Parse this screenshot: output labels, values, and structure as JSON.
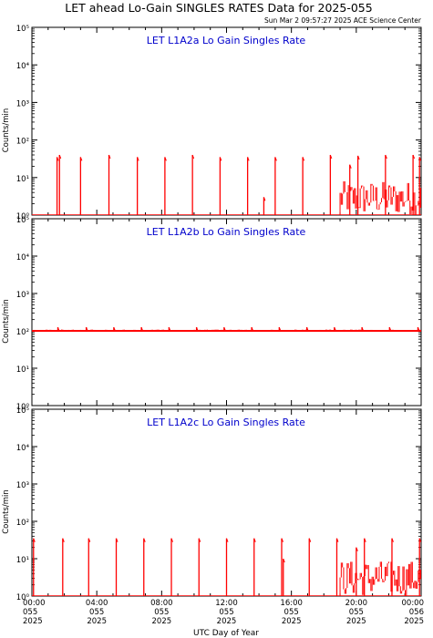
{
  "figure": {
    "title": "LET ahead Lo-Gain SINGLES RATES Data for 2025-055",
    "timestamp": "Sun Mar  2 09:57:27 2025 ACE Science Center",
    "xlabel": "UTC Day of Year",
    "colors": {
      "data": "#ff0000",
      "panel_title": "#0000cc",
      "axes": "#000000",
      "background": "#ffffff"
    }
  },
  "chart_data": [
    {
      "type": "line",
      "title": "LET L1A2a Lo Gain Singles Rate",
      "ylabel": "Counts/min",
      "yscale": "log",
      "ylim": [
        1,
        100000
      ],
      "ytick_labels": [
        "10⁰",
        "10¹",
        "10²",
        "10³",
        "10⁴",
        "10⁵"
      ],
      "xlim": [
        0,
        24
      ],
      "x_unit": "hours UTC, day 055",
      "baseline": 1,
      "spikes": [
        {
          "x": 1.55,
          "y": 35
        },
        {
          "x": 1.7,
          "y": 40
        },
        {
          "x": 3.0,
          "y": 35
        },
        {
          "x": 4.75,
          "y": 40
        },
        {
          "x": 6.5,
          "y": 35
        },
        {
          "x": 8.2,
          "y": 35
        },
        {
          "x": 9.9,
          "y": 40
        },
        {
          "x": 11.6,
          "y": 35
        },
        {
          "x": 13.3,
          "y": 35
        },
        {
          "x": 14.3,
          "y": 3
        },
        {
          "x": 15.0,
          "y": 35
        },
        {
          "x": 16.7,
          "y": 35
        },
        {
          "x": 18.4,
          "y": 40
        },
        {
          "x": 19.6,
          "y": 22
        },
        {
          "x": 20.1,
          "y": 38
        },
        {
          "x": 21.8,
          "y": 40
        },
        {
          "x": 23.5,
          "y": 40
        },
        {
          "x": 23.9,
          "y": 35
        }
      ],
      "noise": {
        "x_start": 19.0,
        "x_end": 24.0,
        "y_low": 1,
        "y_high": 8
      }
    },
    {
      "type": "line",
      "title": "LET L1A2b Lo Gain Singles Rate",
      "ylabel": "Counts/min",
      "yscale": "log",
      "ylim": [
        1,
        100000
      ],
      "ytick_labels": [
        "10⁰",
        "10¹",
        "10²",
        "10³",
        "10⁴",
        "10⁵"
      ],
      "xlim": [
        0,
        24
      ],
      "x_unit": "hours UTC, day 055",
      "baseline": 100,
      "spikes": [
        {
          "x": 1.6,
          "y": 125
        },
        {
          "x": 3.35,
          "y": 125
        },
        {
          "x": 5.05,
          "y": 125
        },
        {
          "x": 6.75,
          "y": 125
        },
        {
          "x": 8.45,
          "y": 125
        },
        {
          "x": 10.15,
          "y": 125
        },
        {
          "x": 11.85,
          "y": 125
        },
        {
          "x": 13.55,
          "y": 125
        },
        {
          "x": 15.25,
          "y": 125
        },
        {
          "x": 16.95,
          "y": 125
        },
        {
          "x": 18.65,
          "y": 125
        },
        {
          "x": 20.35,
          "y": 125
        },
        {
          "x": 22.05,
          "y": 125
        },
        {
          "x": 23.8,
          "y": 125
        }
      ],
      "noise": {
        "x_start": 0,
        "x_end": 24,
        "y_low": 95,
        "y_high": 108
      }
    },
    {
      "type": "line",
      "title": "LET L1A2c Lo Gain Singles Rate",
      "ylabel": "Counts/min",
      "yscale": "log",
      "ylim": [
        1,
        100000
      ],
      "ytick_labels": [
        "10⁰",
        "10¹",
        "10²",
        "10³",
        "10⁴",
        "10⁵"
      ],
      "xlim": [
        0,
        24
      ],
      "x_unit": "hours UTC, day 055",
      "baseline": 1,
      "spikes": [
        {
          "x": 0.1,
          "y": 35
        },
        {
          "x": 1.9,
          "y": 35
        },
        {
          "x": 3.5,
          "y": 35
        },
        {
          "x": 5.2,
          "y": 35
        },
        {
          "x": 6.9,
          "y": 35
        },
        {
          "x": 8.6,
          "y": 35
        },
        {
          "x": 10.3,
          "y": 35
        },
        {
          "x": 12.0,
          "y": 35
        },
        {
          "x": 13.7,
          "y": 35
        },
        {
          "x": 15.4,
          "y": 35
        },
        {
          "x": 15.5,
          "y": 10
        },
        {
          "x": 17.1,
          "y": 35
        },
        {
          "x": 18.8,
          "y": 35
        },
        {
          "x": 20.0,
          "y": 20
        },
        {
          "x": 20.5,
          "y": 35
        },
        {
          "x": 22.2,
          "y": 35
        },
        {
          "x": 23.9,
          "y": 35
        }
      ],
      "noise": {
        "x_start": 19.0,
        "x_end": 24.0,
        "y_low": 1,
        "y_high": 9
      }
    }
  ],
  "x_ticks": [
    {
      "time": "00:00",
      "doy": "055",
      "year": "2025"
    },
    {
      "time": "04:00",
      "doy": "055",
      "year": "2025"
    },
    {
      "time": "08:00",
      "doy": "055",
      "year": "2025"
    },
    {
      "time": "12:00",
      "doy": "055",
      "year": "2025"
    },
    {
      "time": "16:00",
      "doy": "055",
      "year": "2025"
    },
    {
      "time": "20:00",
      "doy": "055",
      "year": "2025"
    },
    {
      "time": "00:00",
      "doy": "056",
      "year": "2025"
    }
  ]
}
